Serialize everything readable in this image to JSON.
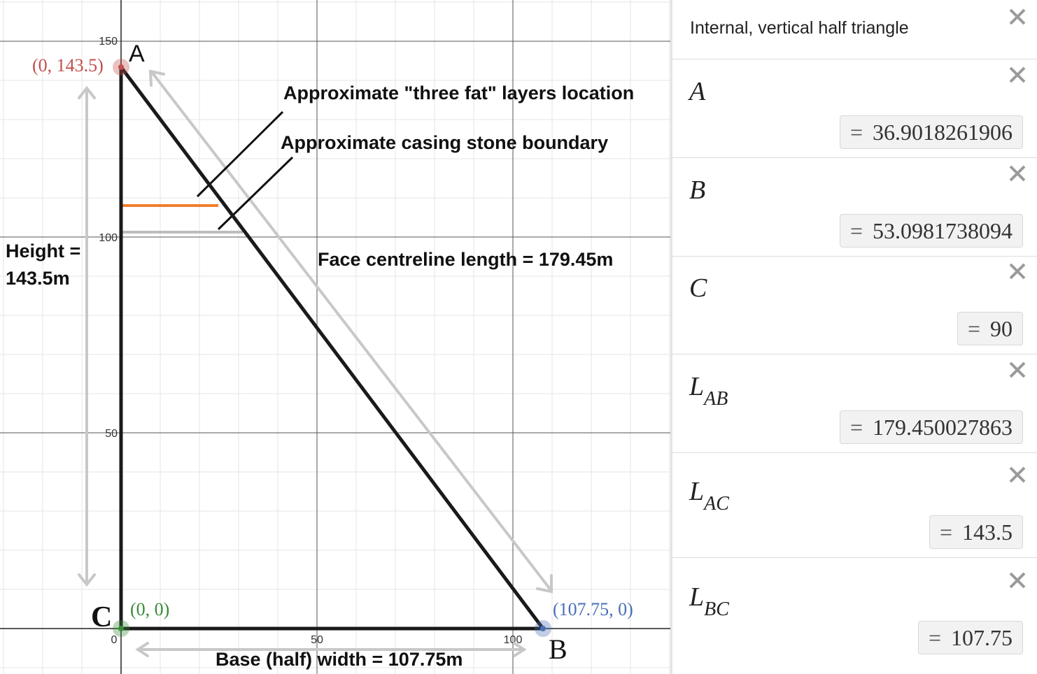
{
  "graph": {
    "axes": {
      "x_ticks": [
        "0",
        "50",
        "100"
      ],
      "y_ticks": [
        "50",
        "100",
        "150"
      ]
    },
    "points": {
      "A": {
        "label": "A",
        "coords": "(0, 143.5)",
        "color": "#c0504d"
      },
      "B": {
        "label": "B",
        "coords": "(107.75, 0)",
        "color": "#4a6fb5"
      },
      "C": {
        "label": "C",
        "coords": "(0, 0)",
        "color": "#3a8a3a"
      }
    },
    "annotations": {
      "three_fat": "Approximate \"three fat\" layers location",
      "casing_stone": "Approximate casing stone boundary",
      "face_centreline": "Face centreline length = 179.45m",
      "height_line1": "Height =",
      "height_line2": "143.5m",
      "base_width": "Base (half) width = 107.75m"
    },
    "colors": {
      "triangle": "#1a1a1a",
      "three_fat_line": "#f07f2d",
      "casing_line": "#bdbdbd",
      "arrow": "#c8c8c8",
      "grid_minor": "#e6e6e6",
      "grid_major": "#222222"
    }
  },
  "panel": {
    "note": "Internal, vertical half triangle",
    "expressions": [
      {
        "label": "A",
        "sub": "",
        "value": "36.9018261906"
      },
      {
        "label": "B",
        "sub": "",
        "value": "53.0981738094"
      },
      {
        "label": "C",
        "sub": "",
        "value": "90"
      },
      {
        "label": "L",
        "sub": "AB",
        "value": "179.450027863"
      },
      {
        "label": "L",
        "sub": "AC",
        "value": "143.5"
      },
      {
        "label": "L",
        "sub": "BC",
        "value": "107.75"
      }
    ],
    "equals": "="
  }
}
